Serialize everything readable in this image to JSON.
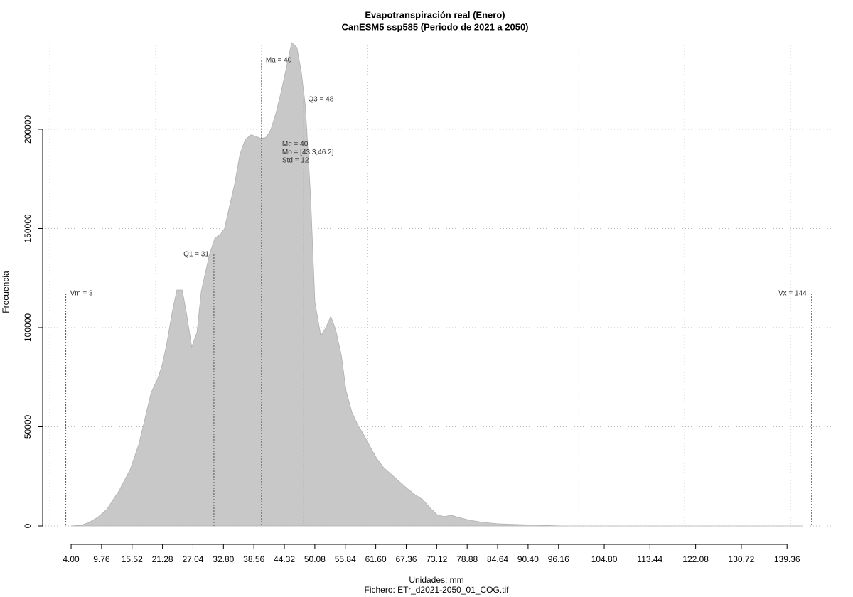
{
  "chart_data": {
    "type": "area",
    "title": "Evapotranspiración real (Enero)",
    "subtitle": "CanESM5 ssp585 (Periodo de 2021 a 2050)",
    "x_label": "Unidades: mm",
    "caption": "Fichero: ETr_d2021-2050_01_COG.tif",
    "y_label": "Frecuencia",
    "color": "#c8c8c8",
    "x": [
      4.0,
      6.0,
      7.4,
      9.0,
      10.7,
      13.1,
      15.2,
      16.8,
      18.1,
      19.1,
      20.4,
      21.2,
      22.1,
      23.1,
      24.0,
      25.0,
      25.8,
      26.8,
      27.8,
      28.6,
      29.5,
      30.2,
      31.2,
      32.2,
      33.0,
      33.8,
      34.9,
      35.9,
      36.9,
      38.0,
      38.9,
      39.8,
      40.8,
      41.7,
      42.7,
      43.7,
      44.7,
      45.7,
      46.7,
      47.5,
      48.3,
      49.3,
      50.1,
      51.2,
      52.1,
      53.1,
      54.0,
      55.1,
      56.0,
      57.1,
      58.2,
      59.2,
      60.5,
      61.8,
      63.1,
      65.2,
      67.2,
      69.2,
      70.5,
      71.9,
      73.2,
      74.5,
      75.9,
      77.3,
      79.3,
      82.0,
      84.6,
      88.7,
      92.7,
      96.7,
      142.2
    ],
    "values": [
      0,
      400,
      1800,
      4300,
      8200,
      17900,
      28700,
      41200,
      55600,
      67000,
      74500,
      81000,
      92100,
      107500,
      119000,
      119000,
      107500,
      90300,
      97500,
      118300,
      129000,
      137300,
      145200,
      147000,
      149900,
      159600,
      172100,
      187200,
      194700,
      197200,
      196500,
      195400,
      195800,
      199300,
      207900,
      218700,
      231200,
      243700,
      241200,
      229400,
      211500,
      164900,
      112900,
      96000,
      99600,
      105700,
      99200,
      86000,
      68100,
      57300,
      50900,
      46600,
      40100,
      34000,
      29400,
      24400,
      19700,
      15400,
      13300,
      9000,
      5700,
      4700,
      5400,
      4300,
      2900,
      1800,
      1100,
      700,
      400,
      0,
      0
    ],
    "xlim": [
      -1.38,
      147.8
    ],
    "ylim": [
      0,
      243700
    ],
    "xticks": [
      {
        "value": 4.0,
        "label": "4.00"
      },
      {
        "value": 9.76,
        "label": "9.76"
      },
      {
        "value": 15.52,
        "label": "15.52"
      },
      {
        "value": 21.28,
        "label": "21.28"
      },
      {
        "value": 27.04,
        "label": "27.04"
      },
      {
        "value": 32.8,
        "label": "32.80"
      },
      {
        "value": 38.56,
        "label": "38.56"
      },
      {
        "value": 44.32,
        "label": "44.32"
      },
      {
        "value": 50.08,
        "label": "50.08"
      },
      {
        "value": 55.84,
        "label": "55.84"
      },
      {
        "value": 61.6,
        "label": "61.60"
      },
      {
        "value": 67.36,
        "label": "67.36"
      },
      {
        "value": 73.12,
        "label": "73.12"
      },
      {
        "value": 78.88,
        "label": "78.88"
      },
      {
        "value": 84.64,
        "label": "84.64"
      },
      {
        "value": 90.4,
        "label": "90.40"
      },
      {
        "value": 96.16,
        "label": "96.16"
      },
      {
        "value": 104.8,
        "label": "104.80"
      },
      {
        "value": 113.44,
        "label": "113.44"
      },
      {
        "value": 122.08,
        "label": "122.08"
      },
      {
        "value": 130.72,
        "label": "130.72"
      },
      {
        "value": 139.36,
        "label": "139.36"
      }
    ],
    "yticks": [
      0,
      50000,
      100000,
      150000,
      200000
    ],
    "x_grid": [
      0,
      20,
      40,
      60,
      80,
      100,
      120,
      140
    ],
    "grid": true,
    "markers": [
      {
        "label": "Vm = 3",
        "x": 3
      },
      {
        "label": "Q1 = 31",
        "x": 31
      },
      {
        "label": "Ma = 40",
        "x": 40
      },
      {
        "label": "Q3 = 48",
        "x": 48
      },
      {
        "label": "Vx = 144",
        "x": 144
      }
    ],
    "stats": [
      "Me = 40",
      "Mo = [43.3,46.2]",
      "Std = 12"
    ]
  }
}
